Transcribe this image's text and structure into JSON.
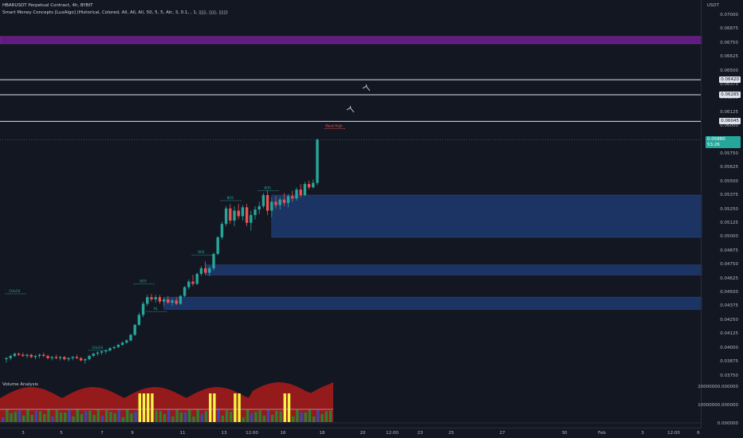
{
  "header": {
    "symbol_line": "HBARUSDT Perpetual Contract, 4h, BYBIT",
    "indicator_line": "Smart Money Concepts [LuxAlgo] (Historical, Colored, All, All, All, 50, 5, 5, Atr, 3, 0.1, , 1, ▯▯▯, ▯▯▯, ▯▯▯)",
    "volume_label": "Volume Analysis"
  },
  "price_scale": {
    "currency": "USDT",
    "ticks": [
      "0.07000",
      "0.06875",
      "0.06750",
      "0.06625",
      "0.06500",
      "0.06375",
      "0.06250",
      "0.06125",
      "0.06000",
      "0.05875",
      "0.05750",
      "0.05625",
      "0.05500",
      "0.05375",
      "0.05250",
      "0.05125",
      "0.05000",
      "0.04875",
      "0.04750",
      "0.04625",
      "0.04500",
      "0.04375",
      "0.04250",
      "0.04125",
      "0.04000",
      "0.03875",
      "0.03750"
    ],
    "badges": [
      {
        "text": "0.06420",
        "style": "white",
        "price": 0.0642
      },
      {
        "text": "0.06285",
        "style": "white",
        "price": 0.06285
      },
      {
        "text": "0.06045",
        "style": "white",
        "price": 0.06045
      },
      {
        "text": "0.05880",
        "style": "green",
        "price": 0.0588
      },
      {
        "text": "53:26",
        "style": "green",
        "price": 0.0583
      }
    ]
  },
  "volume_scale": {
    "ticks": [
      "20000000.000000",
      "10000000.000000",
      "0.000000"
    ]
  },
  "time_axis": {
    "labels": [
      "3",
      "5",
      "7",
      "9",
      "11",
      "13",
      "12:00",
      "16",
      "18",
      "20",
      "12:00",
      "23",
      "25",
      "27",
      "30",
      "Feb",
      "3",
      "12:00",
      "6"
    ]
  },
  "chart_data": {
    "type": "candlestick",
    "price_range": [
      0.0375,
      0.0701
    ],
    "candles": [
      [
        0.039,
        0.0392,
        0.0387,
        0.0391
      ],
      [
        0.0391,
        0.0394,
        0.0389,
        0.0393
      ],
      [
        0.0393,
        0.0396,
        0.0392,
        0.0395
      ],
      [
        0.0395,
        0.0396,
        0.0393,
        0.0394
      ],
      [
        0.0394,
        0.0396,
        0.0392,
        0.0393
      ],
      [
        0.0393,
        0.0395,
        0.0391,
        0.0394
      ],
      [
        0.0394,
        0.0395,
        0.0391,
        0.0392
      ],
      [
        0.0392,
        0.0394,
        0.039,
        0.0393
      ],
      [
        0.0393,
        0.0395,
        0.0391,
        0.0394
      ],
      [
        0.0394,
        0.0396,
        0.0392,
        0.0393
      ],
      [
        0.0393,
        0.0394,
        0.039,
        0.0391
      ],
      [
        0.0391,
        0.0393,
        0.0389,
        0.0392
      ],
      [
        0.0392,
        0.0394,
        0.039,
        0.0391
      ],
      [
        0.0391,
        0.0393,
        0.0389,
        0.0392
      ],
      [
        0.0392,
        0.0393,
        0.0389,
        0.039
      ],
      [
        0.039,
        0.0392,
        0.0388,
        0.0391
      ],
      [
        0.0391,
        0.0393,
        0.0389,
        0.0392
      ],
      [
        0.0392,
        0.0394,
        0.039,
        0.0391
      ],
      [
        0.0391,
        0.0392,
        0.0388,
        0.0389
      ],
      [
        0.0389,
        0.0391,
        0.0386,
        0.039
      ],
      [
        0.039,
        0.0394,
        0.0389,
        0.0393
      ],
      [
        0.0393,
        0.0396,
        0.0392,
        0.0395
      ],
      [
        0.0395,
        0.0397,
        0.0393,
        0.0396
      ],
      [
        0.0396,
        0.0398,
        0.0394,
        0.0397
      ],
      [
        0.0397,
        0.0399,
        0.0395,
        0.0398
      ],
      [
        0.0398,
        0.0401,
        0.0397,
        0.04
      ],
      [
        0.04,
        0.0402,
        0.0399,
        0.0401
      ],
      [
        0.0401,
        0.0404,
        0.04,
        0.0403
      ],
      [
        0.0403,
        0.0406,
        0.0402,
        0.0405
      ],
      [
        0.0405,
        0.0408,
        0.0404,
        0.0407
      ],
      [
        0.0407,
        0.0413,
        0.0406,
        0.0412
      ],
      [
        0.0412,
        0.0422,
        0.0411,
        0.0421
      ],
      [
        0.0421,
        0.0432,
        0.042,
        0.043
      ],
      [
        0.043,
        0.0442,
        0.0428,
        0.044
      ],
      [
        0.044,
        0.0448,
        0.0438,
        0.0446
      ],
      [
        0.0446,
        0.0449,
        0.0442,
        0.0444
      ],
      [
        0.0444,
        0.0448,
        0.0441,
        0.0446
      ],
      [
        0.0446,
        0.0448,
        0.044,
        0.0442
      ],
      [
        0.0442,
        0.0446,
        0.0438,
        0.0444
      ],
      [
        0.0444,
        0.0447,
        0.044,
        0.0441
      ],
      [
        0.0441,
        0.0445,
        0.0438,
        0.0443
      ],
      [
        0.0443,
        0.0446,
        0.0439,
        0.044
      ],
      [
        0.044,
        0.0448,
        0.0439,
        0.0447
      ],
      [
        0.0447,
        0.0456,
        0.0446,
        0.0455
      ],
      [
        0.0455,
        0.0462,
        0.0453,
        0.046
      ],
      [
        0.046,
        0.0466,
        0.0456,
        0.0458
      ],
      [
        0.0458,
        0.0468,
        0.0457,
        0.0467
      ],
      [
        0.0467,
        0.0474,
        0.0465,
        0.0472
      ],
      [
        0.0472,
        0.0478,
        0.0466,
        0.0468
      ],
      [
        0.0468,
        0.0474,
        0.0465,
        0.0472
      ],
      [
        0.0472,
        0.0486,
        0.047,
        0.0485
      ],
      [
        0.0485,
        0.0501,
        0.0484,
        0.05
      ],
      [
        0.05,
        0.0514,
        0.0498,
        0.0512
      ],
      [
        0.0512,
        0.0528,
        0.051,
        0.0526
      ],
      [
        0.0526,
        0.053,
        0.0512,
        0.0515
      ],
      [
        0.0515,
        0.0528,
        0.051,
        0.0524
      ],
      [
        0.0524,
        0.053,
        0.0516,
        0.0519
      ],
      [
        0.0519,
        0.0529,
        0.0515,
        0.0527
      ],
      [
        0.0527,
        0.053,
        0.051,
        0.0513
      ],
      [
        0.0513,
        0.0524,
        0.0506,
        0.052
      ],
      [
        0.052,
        0.0528,
        0.0516,
        0.0525
      ],
      [
        0.0525,
        0.0532,
        0.0521,
        0.0528
      ],
      [
        0.0528,
        0.054,
        0.0526,
        0.0538
      ],
      [
        0.0538,
        0.0542,
        0.052,
        0.0524
      ],
      [
        0.0524,
        0.0536,
        0.0518,
        0.0532
      ],
      [
        0.0532,
        0.0537,
        0.0526,
        0.0529
      ],
      [
        0.0529,
        0.0536,
        0.0525,
        0.0534
      ],
      [
        0.0534,
        0.054,
        0.0528,
        0.0531
      ],
      [
        0.0531,
        0.0539,
        0.0527,
        0.0537
      ],
      [
        0.0537,
        0.0542,
        0.0532,
        0.0535
      ],
      [
        0.0535,
        0.0545,
        0.0533,
        0.0543
      ],
      [
        0.0543,
        0.0548,
        0.0536,
        0.0538
      ],
      [
        0.0538,
        0.055,
        0.0537,
        0.0548
      ],
      [
        0.0548,
        0.0551,
        0.0543,
        0.0545
      ],
      [
        0.0545,
        0.0552,
        0.0544,
        0.0549
      ],
      [
        0.0549,
        0.0589,
        0.0547,
        0.0588
      ]
    ]
  },
  "annotations": [
    {
      "text": "CHoCH",
      "color": "#26a69a",
      "price": 0.0449,
      "candle": 2
    },
    {
      "text": "CHoCH",
      "color": "#26a69a",
      "price": 0.0398,
      "candle": 22
    },
    {
      "text": "BOS",
      "color": "#26a69a",
      "price": 0.0458,
      "candle": 33
    },
    {
      "text": "HL",
      "color": "#26a69a",
      "price": 0.0433,
      "candle": 36
    },
    {
      "text": "BOS",
      "color": "#26a69a",
      "price": 0.0484,
      "candle": 47
    },
    {
      "text": "BOS",
      "color": "#26a69a",
      "price": 0.0533,
      "candle": 54
    },
    {
      "text": "BOS",
      "color": "#26a69a",
      "price": 0.0542,
      "candle": 63
    },
    {
      "text": "Weak High",
      "color": "#ef5350",
      "price": 0.0598,
      "candle": 79
    }
  ],
  "zones": [
    {
      "name": "supply-zone",
      "from": 0.06745,
      "to": 0.0681,
      "color": "#7b1fa2"
    },
    {
      "name": "order-block-1",
      "from": 0.05,
      "to": 0.0538,
      "color": "#1e3a6e",
      "start_candle": 64
    },
    {
      "name": "order-block-2",
      "from": 0.0466,
      "to": 0.0475,
      "color": "#1e3a6e",
      "start_candle": 48
    },
    {
      "name": "order-block-3",
      "from": 0.0435,
      "to": 0.0446,
      "color": "#1e3a6e",
      "start_candle": 38
    }
  ],
  "hlines": [
    0.0642,
    0.06285,
    0.06045
  ]
}
